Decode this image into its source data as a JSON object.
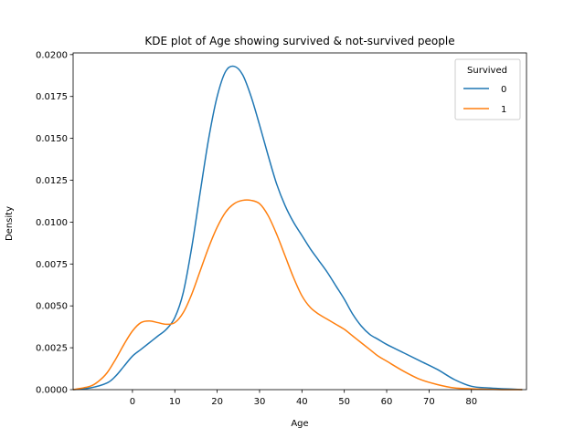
{
  "chart_data": {
    "type": "line",
    "title": "KDE plot of Age showing survived & not-survived people",
    "xlabel": "Age",
    "ylabel": "Density",
    "xlim": [
      -14,
      93
    ],
    "ylim": [
      0,
      0.0201
    ],
    "xticks": [
      0,
      10,
      20,
      30,
      40,
      50,
      60,
      70,
      80
    ],
    "yticks": [
      0.0,
      0.0025,
      0.005,
      0.0075,
      0.01,
      0.0125,
      0.015,
      0.0175,
      0.02
    ],
    "ytick_labels": [
      "0.0000",
      "0.0025",
      "0.0050",
      "0.0075",
      "0.0100",
      "0.0125",
      "0.0150",
      "0.0175",
      "0.0200"
    ],
    "grid": false,
    "legend": {
      "title": "Survived",
      "placement": "top-right"
    },
    "series": [
      {
        "name": "0",
        "color": "#1f77b4",
        "x": [
          -14,
          -10,
          -6,
          -4,
          -2,
          0,
          2,
          4,
          6,
          8,
          10,
          12,
          14,
          16,
          18,
          20,
          22,
          24,
          26,
          28,
          30,
          32,
          34,
          36,
          38,
          40,
          42,
          44,
          46,
          48,
          50,
          52,
          54,
          56,
          58,
          60,
          64,
          68,
          72,
          76,
          80,
          84,
          88,
          92
        ],
        "y": [
          0.0,
          0.0001,
          0.0004,
          0.0008,
          0.0014,
          0.002,
          0.0024,
          0.0028,
          0.0032,
          0.0036,
          0.0043,
          0.0058,
          0.0085,
          0.0118,
          0.015,
          0.0175,
          0.019,
          0.0193,
          0.0188,
          0.0175,
          0.0158,
          0.014,
          0.0123,
          0.011,
          0.01,
          0.0092,
          0.0084,
          0.0077,
          0.007,
          0.0062,
          0.0054,
          0.0045,
          0.0038,
          0.0033,
          0.003,
          0.0027,
          0.0022,
          0.0017,
          0.0012,
          0.0006,
          0.0002,
          0.0001,
          5e-05,
          0.0
        ]
      },
      {
        "name": "1",
        "color": "#ff7f0e",
        "x": [
          -14,
          -10,
          -8,
          -6,
          -4,
          -2,
          0,
          2,
          4,
          6,
          8,
          10,
          12,
          14,
          16,
          18,
          20,
          22,
          24,
          26,
          28,
          30,
          32,
          34,
          36,
          38,
          40,
          42,
          44,
          46,
          48,
          50,
          52,
          54,
          56,
          58,
          60,
          64,
          68,
          72,
          76,
          80,
          84,
          88,
          92
        ],
        "y": [
          0.0,
          0.0002,
          0.0005,
          0.001,
          0.0018,
          0.0027,
          0.0035,
          0.004,
          0.0041,
          0.004,
          0.0039,
          0.004,
          0.0046,
          0.0057,
          0.0071,
          0.0085,
          0.0097,
          0.0106,
          0.0111,
          0.0113,
          0.0113,
          0.0111,
          0.0104,
          0.0093,
          0.008,
          0.0067,
          0.0056,
          0.0049,
          0.0045,
          0.0042,
          0.0039,
          0.0036,
          0.0032,
          0.0028,
          0.0024,
          0.002,
          0.0017,
          0.0011,
          0.0006,
          0.0003,
          0.0001,
          5e-05,
          2e-05,
          0.0,
          0.0
        ]
      }
    ]
  }
}
